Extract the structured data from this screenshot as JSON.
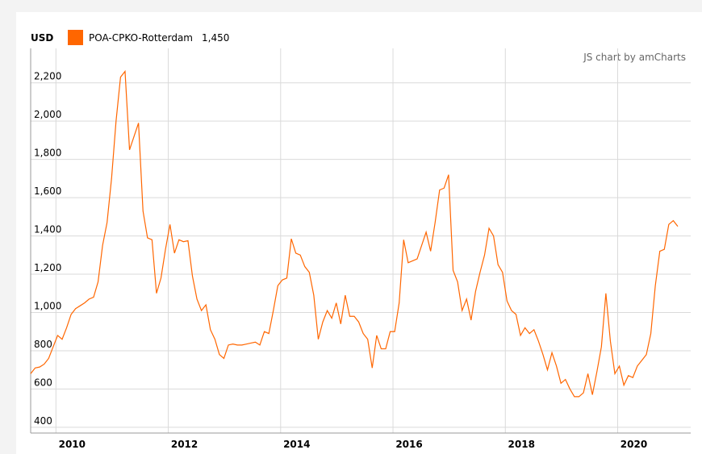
{
  "chart_data": {
    "type": "line",
    "y_unit": "USD",
    "credit": "JS chart by amCharts",
    "legend_value": "1,450",
    "x": [
      2009.55,
      2009.63,
      2009.71,
      2009.79,
      2009.87,
      2009.95,
      2010.03,
      2010.11,
      2010.19,
      2010.27,
      2010.35,
      2010.43,
      2010.51,
      2010.59,
      2010.67,
      2010.75,
      2010.83,
      2010.91,
      2010.99,
      2011.07,
      2011.15,
      2011.23,
      2011.31,
      2011.39,
      2011.47,
      2011.55,
      2011.63,
      2011.71,
      2011.79,
      2011.87,
      2011.95,
      2012.03,
      2012.11,
      2012.19,
      2012.27,
      2012.35,
      2012.43,
      2012.51,
      2012.59,
      2012.67,
      2012.75,
      2012.83,
      2012.91,
      2012.99,
      2013.07,
      2013.15,
      2013.23,
      2013.31,
      2013.39,
      2013.47,
      2013.55,
      2013.63,
      2013.71,
      2013.79,
      2013.87,
      2013.95,
      2014.03,
      2014.11,
      2014.19,
      2014.27,
      2014.35,
      2014.43,
      2014.51,
      2014.59,
      2014.67,
      2014.75,
      2014.83,
      2014.91,
      2014.99,
      2015.07,
      2015.15,
      2015.23,
      2015.31,
      2015.39,
      2015.47,
      2015.55,
      2015.63,
      2015.71,
      2015.79,
      2015.87,
      2015.95,
      2016.03,
      2016.11,
      2016.19,
      2016.27,
      2016.35,
      2016.43,
      2016.51,
      2016.59,
      2016.67,
      2016.75,
      2016.83,
      2016.91,
      2016.99,
      2017.07,
      2017.15,
      2017.23,
      2017.31,
      2017.39,
      2017.47,
      2017.55,
      2017.63,
      2017.71,
      2017.79,
      2017.87,
      2017.95,
      2018.03,
      2018.11,
      2018.19,
      2018.27,
      2018.35,
      2018.43,
      2018.51,
      2018.59,
      2018.67,
      2018.75,
      2018.83,
      2018.91,
      2018.99,
      2019.07,
      2019.15,
      2019.23,
      2019.31,
      2019.39,
      2019.47,
      2019.55,
      2019.63,
      2019.71,
      2019.79,
      2019.87,
      2019.95,
      2020.03,
      2020.11,
      2020.19,
      2020.27,
      2020.35,
      2020.43,
      2020.51,
      2020.59,
      2020.67,
      2020.75,
      2020.83,
      2020.91,
      2020.99,
      2021.07
    ],
    "series": [
      {
        "name": "POA-CPKO-Rotterdam",
        "color": "#ff6600",
        "values": [
          680,
          710,
          715,
          730,
          760,
          820,
          880,
          860,
          920,
          990,
          1020,
          1035,
          1050,
          1070,
          1080,
          1160,
          1350,
          1470,
          1700,
          2000,
          2230,
          2260,
          1850,
          1920,
          1990,
          1530,
          1390,
          1380,
          1100,
          1180,
          1330,
          1460,
          1310,
          1380,
          1370,
          1375,
          1190,
          1070,
          1010,
          1040,
          910,
          860,
          780,
          760,
          830,
          835,
          830,
          830,
          835,
          840,
          845,
          830,
          900,
          890,
          1010,
          1140,
          1170,
          1180,
          1385,
          1310,
          1300,
          1240,
          1210,
          1090,
          860,
          950,
          1010,
          970,
          1050,
          940,
          1090,
          980,
          980,
          950,
          890,
          860,
          710,
          880,
          810,
          810,
          900,
          900,
          1050,
          1380,
          1260,
          1270,
          1280,
          1350,
          1420,
          1320,
          1470,
          1640,
          1650,
          1720,
          1220,
          1160,
          1010,
          1070,
          960,
          1110,
          1210,
          1300,
          1440,
          1400,
          1250,
          1210,
          1060,
          1010,
          990,
          880,
          920,
          890,
          910,
          850,
          780,
          700,
          790,
          720,
          630,
          650,
          600,
          560,
          560,
          580,
          680,
          570,
          690,
          820,
          1100,
          850,
          680,
          720,
          620,
          670,
          660,
          720,
          750,
          780,
          890,
          1140,
          1320,
          1330,
          1460,
          1480,
          1450
        ]
      }
    ],
    "xlim": [
      2009.55,
      2021.3
    ],
    "xticks": [
      2010,
      2012,
      2014,
      2016,
      2018,
      2020
    ],
    "ylim": [
      370,
      2380
    ],
    "yticks": [
      400,
      600,
      800,
      {
        "value": 1000,
        "label": "1,000"
      },
      {
        "value": 1200,
        "label": "1,200"
      },
      {
        "value": 1400,
        "label": "1,400"
      },
      {
        "value": 1600,
        "label": "1,600"
      },
      {
        "value": 1800,
        "label": "1,800"
      },
      {
        "value": 2000,
        "label": "2,000"
      },
      {
        "value": 2200,
        "label": "2,200"
      }
    ],
    "grid": true
  }
}
